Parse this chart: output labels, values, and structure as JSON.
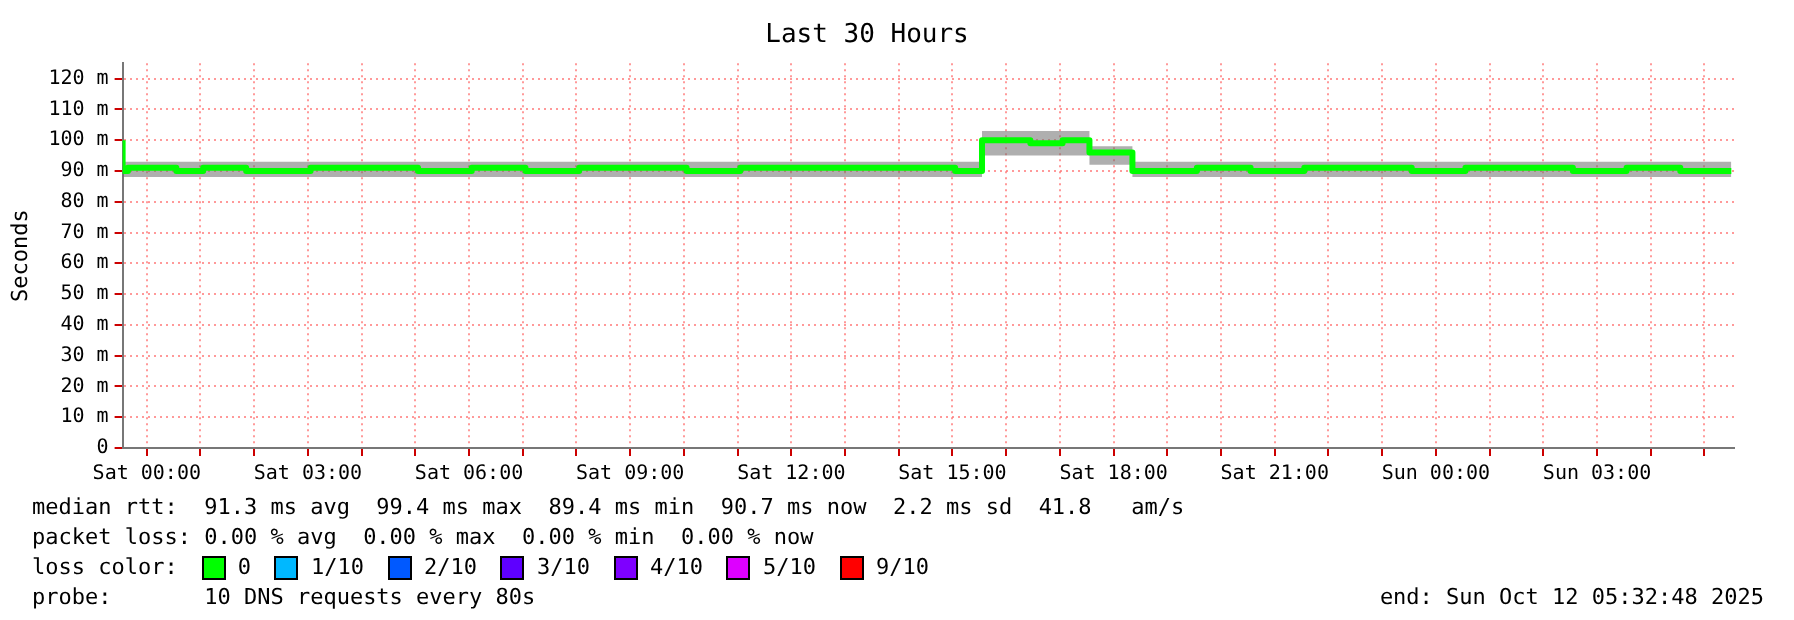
{
  "chart_data": {
    "type": "step",
    "title": "Last 30 Hours",
    "ylabel": "Seconds",
    "x": [
      "2025-10-10T23:33",
      "2025-10-10T23:39",
      "2025-10-11T00:33",
      "2025-10-11T01:03",
      "2025-10-11T01:51",
      "2025-10-11T03:03",
      "2025-10-11T04:03",
      "2025-10-11T05:03",
      "2025-10-11T06:03",
      "2025-10-11T07:03",
      "2025-10-11T08:03",
      "2025-10-11T09:03",
      "2025-10-11T10:03",
      "2025-10-11T11:03",
      "2025-10-11T12:03",
      "2025-10-11T13:03",
      "2025-10-11T14:03",
      "2025-10-11T15:03",
      "2025-10-11T15:33",
      "2025-10-11T16:27",
      "2025-10-11T17:03",
      "2025-10-11T17:33",
      "2025-10-11T18:21",
      "2025-10-11T18:36",
      "2025-10-11T19:33",
      "2025-10-11T20:33",
      "2025-10-11T21:33",
      "2025-10-11T22:33",
      "2025-10-11T23:33",
      "2025-10-12T00:33",
      "2025-10-12T01:33",
      "2025-10-12T02:33",
      "2025-10-12T03:33",
      "2025-10-12T04:33",
      "2025-10-12T05:30"
    ],
    "series": [
      {
        "name": "0",
        "color": "#00ff00",
        "values": [
          100,
          90,
          91,
          90,
          91,
          90,
          91,
          91,
          90,
          91,
          90,
          91,
          91,
          90,
          91,
          91,
          91,
          91,
          90,
          100,
          99,
          100,
          96,
          90,
          90,
          91,
          90,
          91,
          91,
          90,
          91,
          91,
          90,
          91,
          90
        ],
        "lower": [
          95,
          88,
          88,
          88,
          88,
          88,
          88,
          88,
          88,
          88,
          88,
          88,
          88,
          88,
          88,
          88,
          88,
          88,
          88,
          95,
          95,
          95,
          92,
          88,
          88,
          88,
          88,
          88,
          88,
          88,
          88,
          88,
          88,
          88,
          88
        ],
        "upper": [
          102,
          93,
          93,
          93,
          93,
          93,
          93,
          93,
          93,
          93,
          93,
          93,
          93,
          93,
          93,
          93,
          93,
          93,
          93,
          103,
          103,
          103,
          98,
          93,
          93,
          93,
          93,
          93,
          93,
          93,
          93,
          93,
          93,
          93,
          93
        ]
      },
      {
        "name": "1/10",
        "color": "#00b8ff",
        "values": [
          null,
          null,
          null,
          null,
          null,
          null,
          null,
          null,
          null,
          null,
          null,
          null,
          null,
          null,
          null,
          null,
          null,
          null,
          null,
          null,
          null,
          null,
          null,
          null,
          null,
          null,
          null,
          null,
          null,
          null,
          null,
          null,
          null,
          null,
          null
        ]
      },
      {
        "name": "2/10",
        "color": "#0059ff",
        "values": [
          null,
          null,
          null,
          null,
          null,
          null,
          null,
          null,
          null,
          null,
          null,
          null,
          null,
          null,
          null,
          null,
          null,
          null,
          null,
          null,
          null,
          null,
          null,
          null,
          null,
          null,
          null,
          null,
          null,
          null,
          null,
          null,
          null,
          null,
          null
        ]
      },
      {
        "name": "3/10",
        "color": "#5e00ff",
        "values": [
          null,
          null,
          null,
          null,
          null,
          null,
          null,
          null,
          null,
          null,
          null,
          null,
          null,
          null,
          null,
          null,
          null,
          null,
          null,
          null,
          null,
          null,
          null,
          null,
          null,
          null,
          null,
          null,
          null,
          null,
          null,
          null,
          null,
          null,
          null
        ]
      },
      {
        "name": "4/10",
        "color": "#7e00ff",
        "values": [
          null,
          null,
          null,
          null,
          null,
          null,
          null,
          null,
          null,
          null,
          null,
          null,
          null,
          null,
          null,
          null,
          null,
          null,
          null,
          null,
          null,
          null,
          null,
          null,
          null,
          null,
          null,
          null,
          null,
          null,
          null,
          null,
          null,
          null,
          null
        ]
      },
      {
        "name": "5/10",
        "color": "#dd00ff",
        "values": [
          null,
          null,
          null,
          null,
          null,
          null,
          null,
          null,
          null,
          null,
          null,
          null,
          null,
          null,
          null,
          null,
          null,
          null,
          null,
          null,
          null,
          null,
          null,
          null,
          null,
          null,
          null,
          null,
          null,
          null,
          null,
          null,
          null,
          null,
          null
        ]
      },
      {
        "name": "9/10",
        "color": "#ff0000",
        "values": [
          null,
          null,
          null,
          null,
          null,
          null,
          null,
          null,
          null,
          null,
          null,
          null,
          null,
          null,
          null,
          null,
          null,
          null,
          null,
          null,
          null,
          null,
          null,
          null,
          null,
          null,
          null,
          null,
          null,
          null,
          null,
          null,
          null,
          null,
          null
        ]
      }
    ],
    "xlim": [
      "2025-10-10T23:33",
      "2025-10-12T05:33"
    ],
    "xticks": [
      {
        "value": "2025-10-11T00:00",
        "label": "Sat 00:00"
      },
      {
        "value": "2025-10-11T01:00",
        "label": null
      },
      {
        "value": "2025-10-11T02:00",
        "label": null
      },
      {
        "value": "2025-10-11T03:00",
        "label": "Sat 03:00"
      },
      {
        "value": "2025-10-11T04:00",
        "label": null
      },
      {
        "value": "2025-10-11T05:00",
        "label": null
      },
      {
        "value": "2025-10-11T06:00",
        "label": "Sat 06:00"
      },
      {
        "value": "2025-10-11T07:00",
        "label": null
      },
      {
        "value": "2025-10-11T08:00",
        "label": null
      },
      {
        "value": "2025-10-11T09:00",
        "label": "Sat 09:00"
      },
      {
        "value": "2025-10-11T10:00",
        "label": null
      },
      {
        "value": "2025-10-11T11:00",
        "label": null
      },
      {
        "value": "2025-10-11T12:00",
        "label": "Sat 12:00"
      },
      {
        "value": "2025-10-11T13:00",
        "label": null
      },
      {
        "value": "2025-10-11T14:00",
        "label": null
      },
      {
        "value": "2025-10-11T15:00",
        "label": "Sat 15:00"
      },
      {
        "value": "2025-10-11T16:00",
        "label": null
      },
      {
        "value": "2025-10-11T17:00",
        "label": null
      },
      {
        "value": "2025-10-11T18:00",
        "label": "Sat 18:00"
      },
      {
        "value": "2025-10-11T19:00",
        "label": null
      },
      {
        "value": "2025-10-11T20:00",
        "label": null
      },
      {
        "value": "2025-10-11T21:00",
        "label": "Sat 21:00"
      },
      {
        "value": "2025-10-11T22:00",
        "label": null
      },
      {
        "value": "2025-10-11T23:00",
        "label": null
      },
      {
        "value": "2025-10-12T00:00",
        "label": "Sun 00:00"
      },
      {
        "value": "2025-10-12T01:00",
        "label": null
      },
      {
        "value": "2025-10-12T02:00",
        "label": null
      },
      {
        "value": "2025-10-12T03:00",
        "label": "Sun 03:00"
      },
      {
        "value": "2025-10-12T04:00",
        "label": null
      },
      {
        "value": "2025-10-12T05:00",
        "label": null
      }
    ],
    "ylim": [
      0,
      125
    ],
    "yticks": [
      0,
      {
        "value": 10,
        "label": "10 m"
      },
      {
        "value": 20,
        "label": "20 m"
      },
      {
        "value": 30,
        "label": "30 m"
      },
      {
        "value": 40,
        "label": "40 m"
      },
      {
        "value": 50,
        "label": "50 m"
      },
      {
        "value": 60,
        "label": "60 m"
      },
      {
        "value": 70,
        "label": "70 m"
      },
      {
        "value": 80,
        "label": "80 m"
      },
      {
        "value": 90,
        "label": "90 m"
      },
      {
        "value": 100,
        "label": "100 m"
      },
      {
        "value": 110,
        "label": "110 m"
      },
      {
        "value": 120,
        "label": "120 m"
      }
    ],
    "grid": true,
    "legend": "bottom",
    "legend_title": "loss color:",
    "annotations": [
      "median rtt:  91.3 ms avg  99.4 ms max  89.4 ms min  90.7 ms now  2.2 ms sd  41.8   am/s",
      "packet loss: 0.00 % avg  0.00 % max  0.00 % min  0.00 % now",
      "probe:       10 DNS requests every 80s",
      "end: Sun Oct 12 05:32:48 2025"
    ]
  }
}
